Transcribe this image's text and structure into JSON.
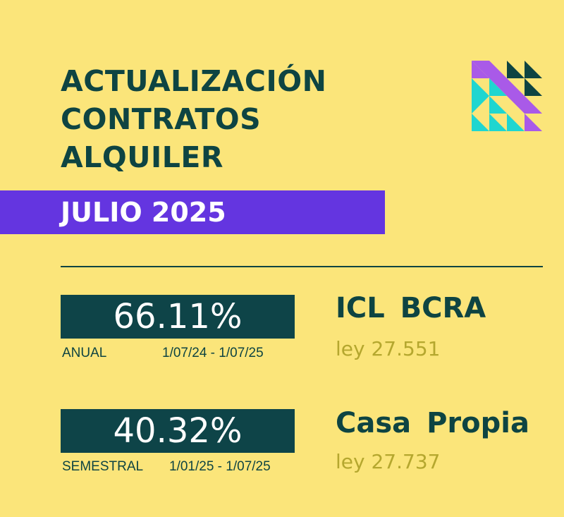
{
  "title_lines": [
    "ACTUALIZACIÓN",
    "CONTRATOS",
    "ALQUILER"
  ],
  "banner": "JULIO 2025",
  "indices": [
    {
      "value": "66.11%",
      "period_label": "ANUAL",
      "date_range": "1/07/24 - 1/07/25",
      "name": "ICL  BCRA",
      "law": "ley 27.551"
    },
    {
      "value": "40.32%",
      "period_label": "SEMESTRAL",
      "date_range": "1/01/25 - 1/07/25",
      "name": "Casa Propia",
      "law": "ley 27.737"
    }
  ],
  "colors": {
    "background": "#fbe57a",
    "dark_teal": "#0e4442",
    "purple": "#6435e0",
    "olive": "#b5a72e",
    "cyan": "#1fd6d0",
    "violet": "#a95ae8"
  },
  "logo_icon": "triangle-grid-logo"
}
